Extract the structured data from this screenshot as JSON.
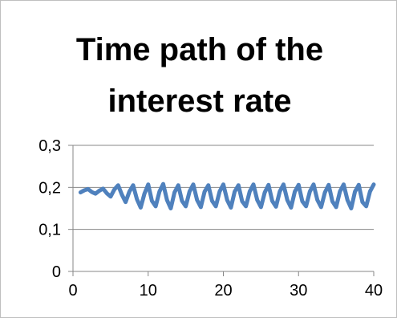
{
  "chart_data": {
    "type": "line",
    "title_lines": [
      "Time path of the",
      "interest rate"
    ],
    "xlabel": "",
    "ylabel": "",
    "xlim": [
      0,
      40
    ],
    "ylim": [
      0,
      0.3
    ],
    "x_ticks": [
      0,
      10,
      20,
      30,
      40
    ],
    "x_tick_labels": [
      "0",
      "10",
      "20",
      "30",
      "40"
    ],
    "y_ticks": [
      0,
      0.1,
      0.2,
      0.3
    ],
    "y_tick_labels": [
      "0",
      "0,1",
      "0,2",
      "0,3"
    ],
    "grid": "horizontal",
    "legend": "none",
    "series": [
      {
        "color": "#4f81bd",
        "x": [
          1,
          1.5,
          2,
          2.5,
          3,
          3.5,
          4,
          4.5,
          5,
          5.5,
          6,
          6.5,
          7,
          7.5,
          8,
          8.5,
          9,
          9.5,
          10,
          10.5,
          11,
          11.5,
          12,
          12.5,
          13,
          13.5,
          14,
          14.5,
          15,
          15.5,
          16,
          16.5,
          17,
          17.5,
          18,
          18.5,
          19,
          19.5,
          20,
          20.5,
          21,
          21.5,
          22,
          22.5,
          23,
          23.5,
          24,
          24.5,
          25,
          25.5,
          26,
          26.5,
          27,
          27.5,
          28,
          28.5,
          29,
          29.5,
          30,
          30.5,
          31,
          31.5,
          32,
          32.5,
          33,
          33.5,
          34,
          34.5,
          35,
          35.5,
          36,
          36.5,
          37,
          37.5,
          38,
          38.5,
          39,
          39.5,
          40
        ],
        "y": [
          0.188,
          0.193,
          0.196,
          0.189,
          0.185,
          0.192,
          0.197,
          0.186,
          0.178,
          0.195,
          0.205,
          0.183,
          0.165,
          0.19,
          0.205,
          0.172,
          0.152,
          0.185,
          0.207,
          0.168,
          0.155,
          0.19,
          0.208,
          0.17,
          0.15,
          0.188,
          0.205,
          0.168,
          0.155,
          0.19,
          0.207,
          0.17,
          0.153,
          0.19,
          0.205,
          0.168,
          0.155,
          0.19,
          0.207,
          0.17,
          0.152,
          0.19,
          0.205,
          0.167,
          0.155,
          0.19,
          0.207,
          0.17,
          0.153,
          0.188,
          0.206,
          0.168,
          0.154,
          0.19,
          0.207,
          0.17,
          0.152,
          0.19,
          0.206,
          0.167,
          0.155,
          0.19,
          0.207,
          0.17,
          0.153,
          0.188,
          0.206,
          0.167,
          0.153,
          0.19,
          0.207,
          0.17,
          0.15,
          0.19,
          0.206,
          0.165,
          0.155,
          0.19,
          0.207
        ]
      }
    ]
  }
}
